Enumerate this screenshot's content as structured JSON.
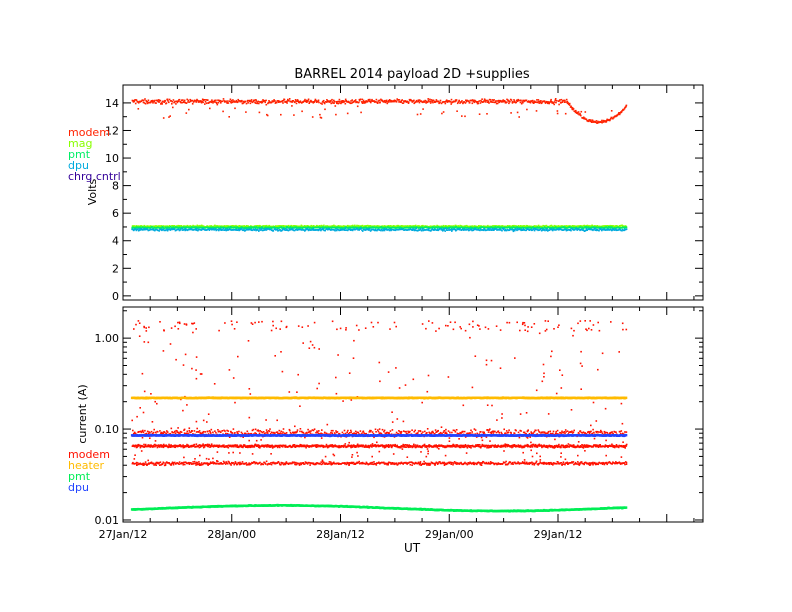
{
  "chart_data": [
    {
      "type": "scatter",
      "title": "BARREL 2014 payload 2D +supplies",
      "xlabel": "",
      "ylabel": "Volts",
      "ylim": [
        -0.3,
        15.3
      ],
      "yticks": [
        "0",
        "2",
        "4",
        "6",
        "8",
        "10",
        "12",
        "14"
      ],
      "ytick_values": [
        0,
        2,
        4,
        6,
        8,
        10,
        12,
        14
      ],
      "x_range_hours": [
        0,
        64
      ],
      "grid": false,
      "legend_placement": "left-middle",
      "series": [
        {
          "name": "modem",
          "color": "#ff2200",
          "level": 14.1,
          "spread": 0.25,
          "dip": {
            "start_hours": 49,
            "end_hours": 56,
            "min": 12.6
          }
        },
        {
          "name": "mag",
          "color": "#88ff00",
          "level": 5.05,
          "spread": 0.08
        },
        {
          "name": "pmt",
          "color": "#00ee66",
          "level": 4.95,
          "spread": 0.08
        },
        {
          "name": "dpu",
          "color": "#00aadd",
          "level": 4.8,
          "spread": 0.12
        },
        {
          "name": "chrg cntrl",
          "color": "#330099",
          "level": null
        }
      ]
    },
    {
      "type": "scatter",
      "title": "",
      "xlabel": "UT",
      "ylabel": "current (A)",
      "yscale": "log",
      "ylim": [
        0.0095,
        2.2
      ],
      "yticks": [
        "0.01",
        "0.10",
        "1.00"
      ],
      "ytick_values": [
        0.01,
        0.1,
        1.0
      ],
      "xticks": [
        "27Jan/12",
        "28Jan/00",
        "28Jan/12",
        "29Jan/00",
        "29Jan/12"
      ],
      "xtick_hours": [
        0,
        12,
        24,
        36,
        48
      ],
      "x_range_hours": [
        0,
        64
      ],
      "grid": false,
      "legend_placement": "left-bottom",
      "series": [
        {
          "name": "modem",
          "color": "#ff1100",
          "levels": [
            0.065,
            0.09,
            0.042
          ],
          "outlier_range": [
            0.04,
            1.5
          ]
        },
        {
          "name": "heater",
          "color": "#ffbb00",
          "level": 0.22
        },
        {
          "name": "pmt",
          "color": "#00ee55",
          "level": 0.0135
        },
        {
          "name": "dpu",
          "color": "#2244ff",
          "level": 0.085
        }
      ]
    }
  ]
}
